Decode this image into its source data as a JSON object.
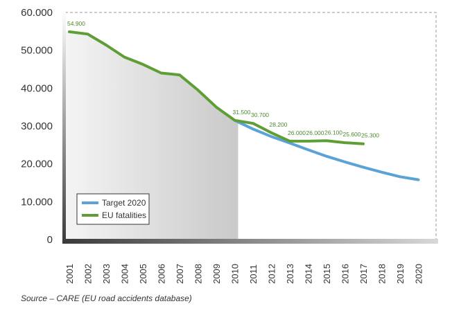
{
  "chart_data": {
    "type": "line",
    "title": "",
    "xlabel": "",
    "ylabel": "",
    "x": [
      "2001",
      "2002",
      "2003",
      "2004",
      "2005",
      "2006",
      "2007",
      "2008",
      "2009",
      "2010",
      "2011",
      "2012",
      "2013",
      "2014",
      "2015",
      "2016",
      "2017",
      "2018",
      "2019",
      "2020"
    ],
    "y_ticks": [
      "0",
      "10.000",
      "20.000",
      "30.000",
      "40.000",
      "50.000",
      "60.000"
    ],
    "ylim": [
      0,
      60000
    ],
    "grid": false,
    "legend_position": "bottom-left",
    "series": [
      {
        "name": "Target 2020",
        "color": "#5ba3d6",
        "x": [
          "2010",
          "2011",
          "2012",
          "2013",
          "2014",
          "2015",
          "2016",
          "2017",
          "2018",
          "2019",
          "2020"
        ],
        "values": [
          31500,
          29200,
          27200,
          25500,
          23700,
          22000,
          20500,
          19100,
          17800,
          16600,
          15800
        ]
      },
      {
        "name": "EU fatalities",
        "color": "#5e9e35",
        "x": [
          "2001",
          "2002",
          "2003",
          "2004",
          "2005",
          "2006",
          "2007",
          "2008",
          "2009",
          "2010",
          "2011",
          "2012",
          "2013",
          "2014",
          "2015",
          "2016",
          "2017"
        ],
        "values": [
          54900,
          54300,
          51400,
          48200,
          46300,
          44000,
          43500,
          39500,
          35000,
          31500,
          30700,
          28200,
          26000,
          26000,
          26100,
          25600,
          25300
        ],
        "data_labels": [
          {
            "x": "2001",
            "text": "54.900"
          },
          {
            "x": "2010",
            "text": "31.500"
          },
          {
            "x": "2011",
            "text": "30.700"
          },
          {
            "x": "2012",
            "text": "28.200"
          },
          {
            "x": "2013",
            "text": "26.000"
          },
          {
            "x": "2014",
            "text": "26.000"
          },
          {
            "x": "2015",
            "text": "26.100"
          },
          {
            "x": "2016",
            "text": "25.600"
          },
          {
            "x": "2017",
            "text": "25.300"
          }
        ]
      }
    ],
    "shaded_region": {
      "from": "2001",
      "to": "2010"
    }
  },
  "source_text": "Source – CARE (EU road accidents database)"
}
